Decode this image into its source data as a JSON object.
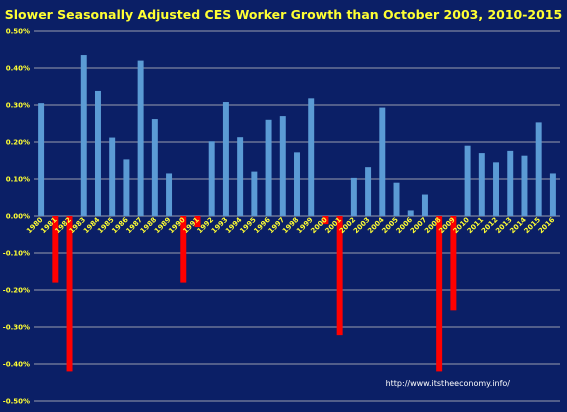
{
  "chart_data": {
    "type": "bar",
    "title": "Slower Seasonally Adjusted CES Worker Growth than October 2003, 2010-2015",
    "xlabel": "",
    "ylabel": "",
    "ylim": [
      -0.5,
      0.5
    ],
    "y_ticks": [
      "-0.50%",
      "-0.40%",
      "-0.30%",
      "-0.20%",
      "-0.10%",
      "0.00%",
      "0.10%",
      "0.20%",
      "0.30%",
      "0.40%",
      "0.50%"
    ],
    "y_tick_values": [
      -0.5,
      -0.4,
      -0.3,
      -0.2,
      -0.1,
      0,
      0.1,
      0.2,
      0.3,
      0.4,
      0.5
    ],
    "categories": [
      "1980",
      "1981",
      "1982",
      "1983",
      "1984",
      "1985",
      "1986",
      "1987",
      "1988",
      "1989",
      "1990",
      "1991",
      "1992",
      "1993",
      "1994",
      "1995",
      "1996",
      "1997",
      "1998",
      "1999",
      "2000",
      "2001",
      "2002",
      "2003",
      "2004",
      "2005",
      "2006",
      "2007",
      "2008",
      "2009",
      "2010",
      "2011",
      "2012",
      "2013",
      "2014",
      "2015",
      "2016"
    ],
    "values": [
      0.305,
      -0.18,
      -0.42,
      0.435,
      0.338,
      0.212,
      0.153,
      0.42,
      0.262,
      0.115,
      -0.18,
      -0.03,
      0.202,
      0.308,
      0.213,
      0.12,
      0.26,
      0.27,
      0.172,
      0.318,
      -0.022,
      -0.322,
      0.103,
      0.132,
      0.293,
      0.09,
      0.015,
      0.058,
      -0.42,
      -0.255,
      0.19,
      0.17,
      0.145,
      0.176,
      0.163,
      0.253,
      0.115
    ],
    "grid": true,
    "colors": {
      "positive": "#5b9bd5",
      "negative": "#ff0000",
      "background": "#0b1f66",
      "text": "#ffff33",
      "grid": "#c8c8c8"
    },
    "annotation": "http://www.itstheeconomy.info/"
  }
}
